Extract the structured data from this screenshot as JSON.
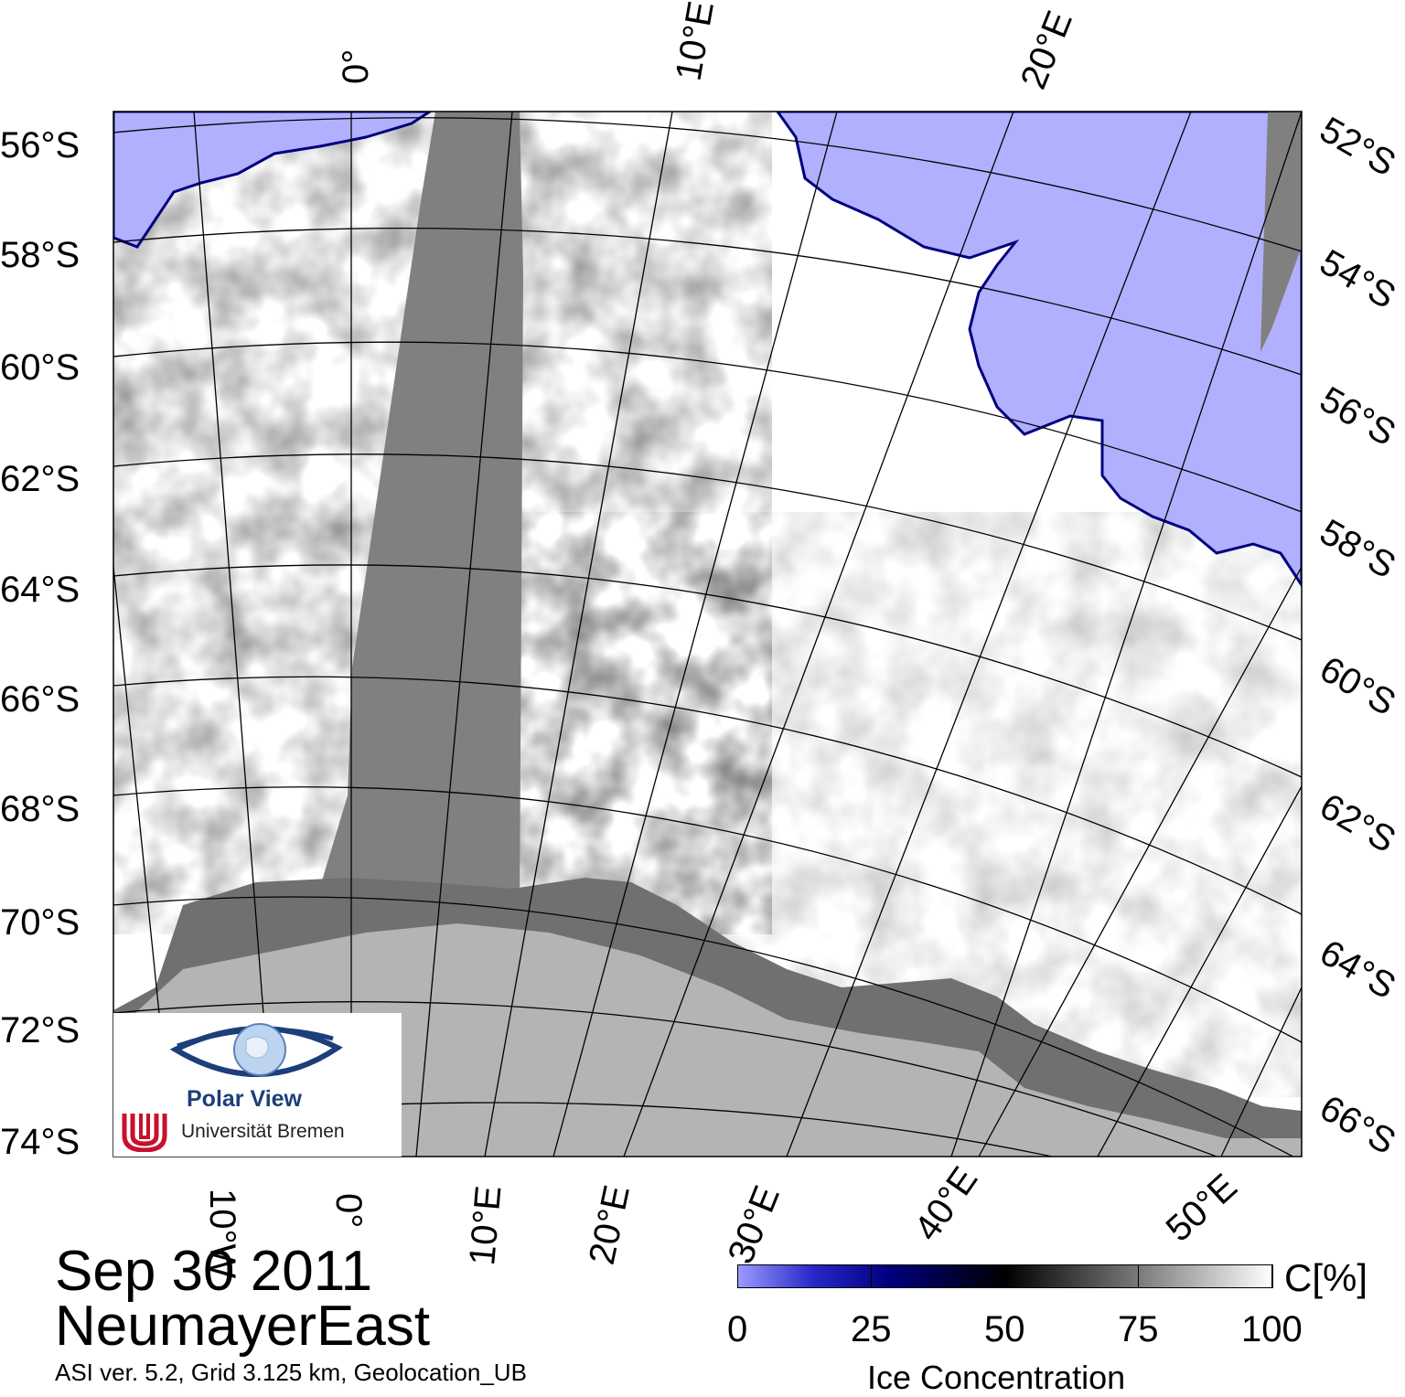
{
  "map": {
    "colors": {
      "open_water": "#b0b0ff",
      "no_data": "#808080",
      "land_ice_shelf": "#707070",
      "land": "#b4b4b4",
      "sea_ice": "#ffffff"
    },
    "lat_labels_left": [
      "56°S",
      "58°S",
      "60°S",
      "62°S",
      "64°S",
      "66°S",
      "68°S",
      "70°S",
      "72°S",
      "74°S"
    ],
    "lat_labels_right": [
      "52°S",
      "54°S",
      "56°S",
      "58°S",
      "60°S",
      "62°S",
      "64°S",
      "66°S"
    ],
    "lon_labels_top": [
      "0°",
      "10°E",
      "20°E"
    ],
    "lon_labels_bottom": [
      "10°W",
      "0°",
      "10°E",
      "20°E",
      "30°E",
      "40°E",
      "50°E"
    ]
  },
  "logo": {
    "title": "Polar View",
    "institution": "Universität Bremen",
    "eye_icon": "eye-globe-icon",
    "seal_icon": "bremen-seal-icon"
  },
  "caption": {
    "date": "Sep 30 2011",
    "region": "NeumayerEast",
    "info": "ASI ver. 5.2,  Grid 3.125 km, Geolocation_UB"
  },
  "colorbar": {
    "unit": "C[%]",
    "title": "Ice Concentration",
    "ticks": [
      "0",
      "25",
      "50",
      "75",
      "100"
    ],
    "tick_values": [
      0,
      25,
      50,
      75,
      100
    ],
    "range": [
      0,
      100
    ],
    "colors": [
      "#9a9aff",
      "#000080",
      "#000000",
      "#7a7a7a",
      "#ffffff"
    ]
  }
}
